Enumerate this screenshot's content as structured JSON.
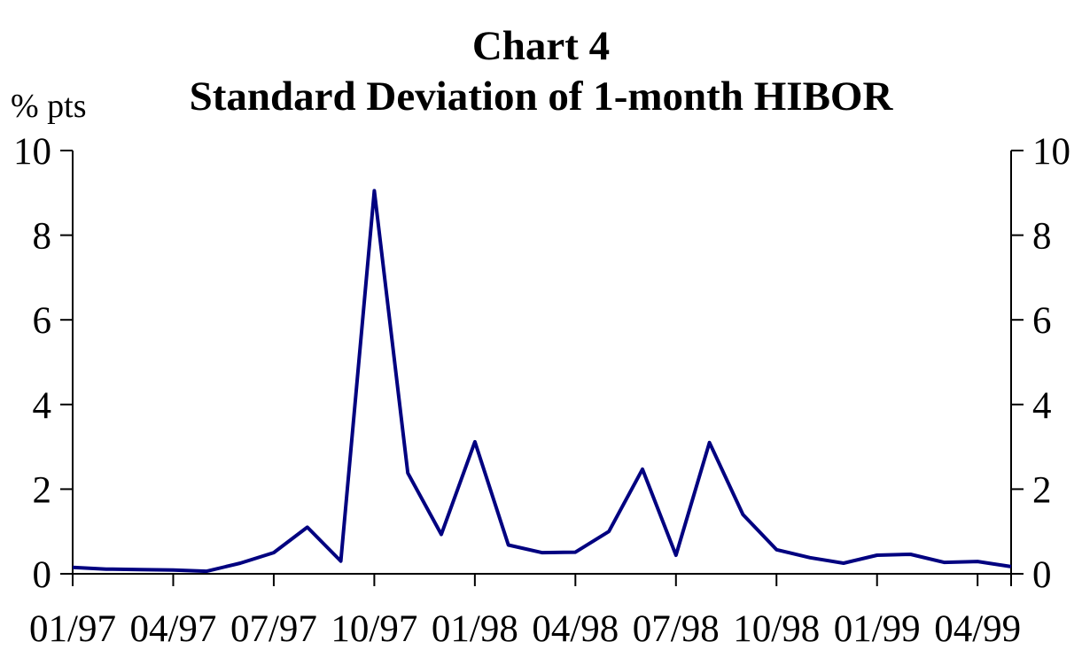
{
  "title": {
    "line1": "Chart 4",
    "line2": "Standard Deviation of 1-month HIBOR"
  },
  "y_axis": {
    "units_label": "% pts",
    "ticks": [
      0,
      2,
      4,
      6,
      8,
      10
    ],
    "min": 0,
    "max": 10,
    "mirrored_right": true
  },
  "x_axis": {
    "tick_labels": [
      "01/97",
      "04/97",
      "07/97",
      "10/97",
      "01/98",
      "04/98",
      "07/98",
      "10/98",
      "01/99",
      "04/99"
    ],
    "tick_every": 3
  },
  "colors": {
    "line": "#000080",
    "axis": "#000000",
    "background": "#ffffff",
    "text": "#000000"
  },
  "chart_data": {
    "type": "line",
    "title": "Chart 4 — Standard Deviation of 1-month HIBOR",
    "ylabel": "% pts",
    "xlabel": "",
    "ylim": [
      0,
      10
    ],
    "grid": false,
    "legend": "none",
    "line_color": "#000080",
    "x": [
      "01/97",
      "02/97",
      "03/97",
      "04/97",
      "05/97",
      "06/97",
      "07/97",
      "08/97",
      "09/97",
      "10/97",
      "11/97",
      "12/97",
      "01/98",
      "02/98",
      "03/98",
      "04/98",
      "05/98",
      "06/98",
      "07/98",
      "08/98",
      "09/98",
      "10/98",
      "11/98",
      "12/98",
      "01/99",
      "02/99",
      "03/99",
      "04/99",
      "05/99"
    ],
    "values": [
      0.15,
      0.11,
      0.1,
      0.09,
      0.06,
      0.25,
      0.5,
      1.1,
      0.3,
      9.05,
      2.38,
      0.93,
      3.12,
      0.68,
      0.5,
      0.51,
      1.0,
      2.47,
      0.44,
      3.1,
      1.4,
      0.57,
      0.38,
      0.25,
      0.44,
      0.46,
      0.27,
      0.29,
      0.17
    ]
  }
}
